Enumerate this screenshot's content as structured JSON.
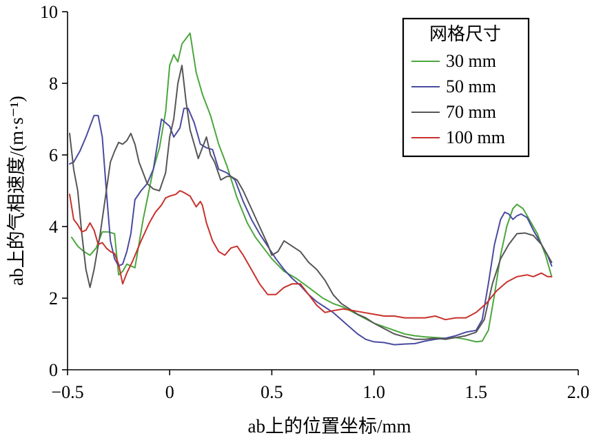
{
  "chart_data": {
    "type": "line",
    "title": "",
    "xlabel": "ab上的位置坐标/mm",
    "ylabel": "ab上的气相速度/(m·s⁻¹)",
    "xlim": [
      -0.5,
      2.0
    ],
    "ylim": [
      0,
      10
    ],
    "x_ticks": [
      "−0.5",
      "0",
      "0.5",
      "1.0",
      "1.5",
      "2.0"
    ],
    "y_ticks": [
      "0",
      "2",
      "4",
      "6",
      "8",
      "10"
    ],
    "grid": false,
    "legend": {
      "title": "网格尺寸",
      "position": "top-right"
    },
    "series": [
      {
        "name": "30 mm",
        "color": "#4aa63c",
        "points": [
          [
            -0.48,
            3.7
          ],
          [
            -0.45,
            3.45
          ],
          [
            -0.42,
            3.3
          ],
          [
            -0.39,
            3.2
          ],
          [
            -0.36,
            3.4
          ],
          [
            -0.33,
            3.85
          ],
          [
            -0.3,
            3.85
          ],
          [
            -0.27,
            3.8
          ],
          [
            -0.25,
            2.65
          ],
          [
            -0.23,
            2.75
          ],
          [
            -0.21,
            2.95
          ],
          [
            -0.17,
            2.85
          ],
          [
            -0.13,
            4.2
          ],
          [
            -0.08,
            5.6
          ],
          [
            -0.05,
            6.2
          ],
          [
            -0.02,
            7.2
          ],
          [
            0.0,
            8.5
          ],
          [
            0.02,
            8.8
          ],
          [
            0.04,
            8.6
          ],
          [
            0.06,
            9.1
          ],
          [
            0.08,
            9.25
          ],
          [
            0.1,
            9.4
          ],
          [
            0.13,
            8.3
          ],
          [
            0.16,
            7.7
          ],
          [
            0.2,
            7.1
          ],
          [
            0.24,
            6.3
          ],
          [
            0.28,
            5.7
          ],
          [
            0.33,
            4.8
          ],
          [
            0.38,
            4.1
          ],
          [
            0.42,
            3.7
          ],
          [
            0.46,
            3.4
          ],
          [
            0.5,
            3.1
          ],
          [
            0.56,
            2.75
          ],
          [
            0.62,
            2.55
          ],
          [
            0.68,
            2.3
          ],
          [
            0.75,
            2.0
          ],
          [
            0.8,
            1.85
          ],
          [
            0.85,
            1.75
          ],
          [
            0.9,
            1.6
          ],
          [
            0.95,
            1.45
          ],
          [
            1.0,
            1.3
          ],
          [
            1.05,
            1.2
          ],
          [
            1.1,
            1.1
          ],
          [
            1.15,
            1.0
          ],
          [
            1.2,
            0.95
          ],
          [
            1.25,
            0.92
          ],
          [
            1.3,
            0.9
          ],
          [
            1.35,
            0.88
          ],
          [
            1.4,
            0.9
          ],
          [
            1.45,
            0.85
          ],
          [
            1.5,
            0.78
          ],
          [
            1.53,
            0.8
          ],
          [
            1.56,
            1.1
          ],
          [
            1.59,
            2.1
          ],
          [
            1.62,
            3.2
          ],
          [
            1.65,
            4.0
          ],
          [
            1.68,
            4.5
          ],
          [
            1.7,
            4.62
          ],
          [
            1.73,
            4.5
          ],
          [
            1.76,
            4.2
          ],
          [
            1.8,
            3.8
          ],
          [
            1.84,
            3.2
          ],
          [
            1.87,
            2.6
          ]
        ]
      },
      {
        "name": "50 mm",
        "color": "#4a4aa0",
        "points": [
          [
            -0.49,
            5.75
          ],
          [
            -0.47,
            5.8
          ],
          [
            -0.44,
            6.1
          ],
          [
            -0.41,
            6.5
          ],
          [
            -0.39,
            6.8
          ],
          [
            -0.37,
            7.1
          ],
          [
            -0.35,
            7.1
          ],
          [
            -0.33,
            6.5
          ],
          [
            -0.31,
            5.0
          ],
          [
            -0.29,
            3.6
          ],
          [
            -0.27,
            3.1
          ],
          [
            -0.25,
            2.9
          ],
          [
            -0.23,
            2.95
          ],
          [
            -0.21,
            3.3
          ],
          [
            -0.19,
            3.8
          ],
          [
            -0.17,
            4.75
          ],
          [
            -0.14,
            5.0
          ],
          [
            -0.11,
            5.2
          ],
          [
            -0.08,
            5.6
          ],
          [
            -0.06,
            6.3
          ],
          [
            -0.04,
            7.0
          ],
          [
            -0.02,
            6.9
          ],
          [
            0.0,
            6.8
          ],
          [
            0.02,
            6.5
          ],
          [
            0.05,
            6.75
          ],
          [
            0.07,
            7.3
          ],
          [
            0.09,
            7.3
          ],
          [
            0.12,
            6.9
          ],
          [
            0.15,
            6.3
          ],
          [
            0.18,
            6.2
          ],
          [
            0.21,
            6.15
          ],
          [
            0.24,
            5.6
          ],
          [
            0.28,
            5.5
          ],
          [
            0.32,
            5.3
          ],
          [
            0.36,
            4.7
          ],
          [
            0.4,
            4.2
          ],
          [
            0.44,
            3.8
          ],
          [
            0.48,
            3.45
          ],
          [
            0.52,
            3.1
          ],
          [
            0.56,
            2.8
          ],
          [
            0.6,
            2.55
          ],
          [
            0.64,
            2.35
          ],
          [
            0.68,
            2.1
          ],
          [
            0.72,
            1.9
          ],
          [
            0.76,
            1.75
          ],
          [
            0.8,
            1.6
          ],
          [
            0.84,
            1.4
          ],
          [
            0.88,
            1.2
          ],
          [
            0.92,
            1.0
          ],
          [
            0.96,
            0.85
          ],
          [
            1.0,
            0.78
          ],
          [
            1.05,
            0.76
          ],
          [
            1.1,
            0.7
          ],
          [
            1.15,
            0.72
          ],
          [
            1.2,
            0.73
          ],
          [
            1.25,
            0.8
          ],
          [
            1.3,
            0.85
          ],
          [
            1.35,
            0.88
          ],
          [
            1.4,
            0.95
          ],
          [
            1.45,
            1.05
          ],
          [
            1.5,
            1.1
          ],
          [
            1.53,
            1.4
          ],
          [
            1.56,
            2.4
          ],
          [
            1.59,
            3.5
          ],
          [
            1.62,
            4.2
          ],
          [
            1.64,
            4.4
          ],
          [
            1.66,
            4.35
          ],
          [
            1.68,
            4.2
          ],
          [
            1.7,
            4.3
          ],
          [
            1.72,
            4.35
          ],
          [
            1.75,
            4.25
          ],
          [
            1.78,
            3.9
          ],
          [
            1.82,
            3.5
          ],
          [
            1.85,
            3.2
          ],
          [
            1.87,
            2.9
          ]
        ]
      },
      {
        "name": "70 mm",
        "color": "#555555",
        "points": [
          [
            -0.49,
            6.6
          ],
          [
            -0.47,
            5.6
          ],
          [
            -0.45,
            5.0
          ],
          [
            -0.43,
            3.8
          ],
          [
            -0.41,
            2.8
          ],
          [
            -0.39,
            2.3
          ],
          [
            -0.37,
            2.8
          ],
          [
            -0.34,
            3.8
          ],
          [
            -0.31,
            5.0
          ],
          [
            -0.29,
            5.8
          ],
          [
            -0.27,
            6.1
          ],
          [
            -0.25,
            6.35
          ],
          [
            -0.23,
            6.3
          ],
          [
            -0.21,
            6.4
          ],
          [
            -0.19,
            6.6
          ],
          [
            -0.17,
            6.3
          ],
          [
            -0.15,
            5.8
          ],
          [
            -0.13,
            5.5
          ],
          [
            -0.11,
            5.2
          ],
          [
            -0.08,
            5.05
          ],
          [
            -0.05,
            5.0
          ],
          [
            -0.02,
            5.5
          ],
          [
            0.0,
            6.5
          ],
          [
            0.02,
            7.0
          ],
          [
            0.04,
            8.0
          ],
          [
            0.06,
            8.5
          ],
          [
            0.08,
            7.5
          ],
          [
            0.1,
            6.7
          ],
          [
            0.12,
            6.3
          ],
          [
            0.14,
            5.9
          ],
          [
            0.16,
            6.2
          ],
          [
            0.18,
            6.5
          ],
          [
            0.2,
            6.0
          ],
          [
            0.22,
            5.8
          ],
          [
            0.25,
            5.3
          ],
          [
            0.28,
            5.4
          ],
          [
            0.3,
            5.4
          ],
          [
            0.33,
            5.3
          ],
          [
            0.36,
            5.0
          ],
          [
            0.4,
            4.5
          ],
          [
            0.44,
            4.0
          ],
          [
            0.48,
            3.5
          ],
          [
            0.5,
            3.2
          ],
          [
            0.53,
            3.3
          ],
          [
            0.56,
            3.6
          ],
          [
            0.6,
            3.45
          ],
          [
            0.64,
            3.3
          ],
          [
            0.68,
            3.0
          ],
          [
            0.72,
            2.8
          ],
          [
            0.76,
            2.5
          ],
          [
            0.8,
            2.1
          ],
          [
            0.84,
            1.85
          ],
          [
            0.88,
            1.7
          ],
          [
            0.92,
            1.55
          ],
          [
            0.96,
            1.45
          ],
          [
            1.0,
            1.3
          ],
          [
            1.05,
            1.15
          ],
          [
            1.1,
            1.0
          ],
          [
            1.15,
            0.92
          ],
          [
            1.2,
            0.85
          ],
          [
            1.25,
            0.85
          ],
          [
            1.3,
            0.88
          ],
          [
            1.35,
            0.85
          ],
          [
            1.4,
            0.9
          ],
          [
            1.45,
            0.95
          ],
          [
            1.5,
            1.05
          ],
          [
            1.54,
            1.4
          ],
          [
            1.58,
            2.4
          ],
          [
            1.62,
            3.1
          ],
          [
            1.66,
            3.5
          ],
          [
            1.7,
            3.8
          ],
          [
            1.74,
            3.82
          ],
          [
            1.78,
            3.75
          ],
          [
            1.82,
            3.5
          ],
          [
            1.87,
            3.0
          ]
        ]
      },
      {
        "name": "100 mm",
        "color": "#c8302a",
        "points": [
          [
            -0.49,
            4.9
          ],
          [
            -0.47,
            4.2
          ],
          [
            -0.45,
            4.05
          ],
          [
            -0.43,
            3.85
          ],
          [
            -0.41,
            3.9
          ],
          [
            -0.39,
            4.1
          ],
          [
            -0.37,
            3.9
          ],
          [
            -0.35,
            3.5
          ],
          [
            -0.33,
            3.55
          ],
          [
            -0.31,
            3.4
          ],
          [
            -0.29,
            3.3
          ],
          [
            -0.27,
            3.25
          ],
          [
            -0.25,
            2.95
          ],
          [
            -0.23,
            2.4
          ],
          [
            -0.21,
            2.7
          ],
          [
            -0.18,
            3.05
          ],
          [
            -0.14,
            3.6
          ],
          [
            -0.1,
            4.1
          ],
          [
            -0.07,
            4.4
          ],
          [
            -0.04,
            4.6
          ],
          [
            -0.02,
            4.8
          ],
          [
            0.0,
            4.85
          ],
          [
            0.03,
            4.9
          ],
          [
            0.05,
            5.0
          ],
          [
            0.07,
            4.95
          ],
          [
            0.1,
            4.85
          ],
          [
            0.13,
            4.55
          ],
          [
            0.15,
            4.7
          ],
          [
            0.16,
            4.6
          ],
          [
            0.18,
            4.1
          ],
          [
            0.21,
            3.6
          ],
          [
            0.24,
            3.3
          ],
          [
            0.27,
            3.2
          ],
          [
            0.3,
            3.4
          ],
          [
            0.33,
            3.45
          ],
          [
            0.36,
            3.2
          ],
          [
            0.4,
            2.8
          ],
          [
            0.44,
            2.4
          ],
          [
            0.48,
            2.1
          ],
          [
            0.52,
            2.1
          ],
          [
            0.56,
            2.3
          ],
          [
            0.6,
            2.4
          ],
          [
            0.64,
            2.4
          ],
          [
            0.68,
            2.1
          ],
          [
            0.72,
            1.8
          ],
          [
            0.76,
            1.6
          ],
          [
            0.8,
            1.65
          ],
          [
            0.85,
            1.7
          ],
          [
            0.9,
            1.65
          ],
          [
            0.95,
            1.6
          ],
          [
            1.0,
            1.55
          ],
          [
            1.05,
            1.5
          ],
          [
            1.1,
            1.5
          ],
          [
            1.15,
            1.45
          ],
          [
            1.2,
            1.45
          ],
          [
            1.25,
            1.45
          ],
          [
            1.3,
            1.5
          ],
          [
            1.35,
            1.4
          ],
          [
            1.4,
            1.45
          ],
          [
            1.45,
            1.45
          ],
          [
            1.5,
            1.6
          ],
          [
            1.55,
            1.85
          ],
          [
            1.6,
            2.2
          ],
          [
            1.65,
            2.45
          ],
          [
            1.7,
            2.6
          ],
          [
            1.75,
            2.65
          ],
          [
            1.78,
            2.6
          ],
          [
            1.82,
            2.7
          ],
          [
            1.85,
            2.6
          ],
          [
            1.87,
            2.6
          ]
        ]
      }
    ]
  }
}
